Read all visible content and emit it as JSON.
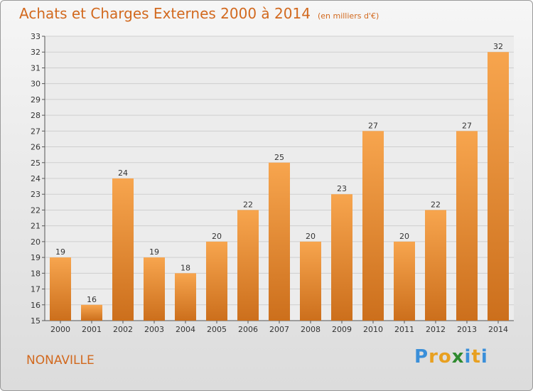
{
  "chart_data": {
    "type": "bar",
    "title": "Achats et Charges Externes 2000 à 2014",
    "subtitle": "(en milliers d'€)",
    "categories": [
      "2000",
      "2001",
      "2002",
      "2003",
      "2004",
      "2005",
      "2006",
      "2007",
      "2008",
      "2009",
      "2010",
      "2011",
      "2012",
      "2013",
      "2014"
    ],
    "values": [
      19,
      16,
      24,
      19,
      18,
      20,
      22,
      25,
      20,
      23,
      27,
      20,
      22,
      27,
      32
    ],
    "ylim": [
      15,
      33
    ],
    "yticks": [
      15,
      16,
      17,
      18,
      19,
      20,
      21,
      22,
      23,
      24,
      25,
      26,
      27,
      28,
      29,
      30,
      31,
      32,
      33
    ],
    "grid": true,
    "bar_color_top": "#f7a54e",
    "bar_color_bottom": "#cc6f1c",
    "accent_color": "#d2691e"
  },
  "footer": {
    "commune": "NONAVILLE",
    "logo": {
      "text": "Proxiti",
      "letters": [
        {
          "ch": "P",
          "color": "#3a8fd9"
        },
        {
          "ch": "r",
          "color": "#e8a020"
        },
        {
          "ch": "o",
          "color": "#e8a020"
        },
        {
          "ch": "x",
          "color": "#2f8a2f"
        },
        {
          "ch": "i",
          "color": "#3a8fd9"
        },
        {
          "ch": "t",
          "color": "#e8a020"
        },
        {
          "ch": "i",
          "color": "#3a8fd9"
        }
      ]
    }
  }
}
